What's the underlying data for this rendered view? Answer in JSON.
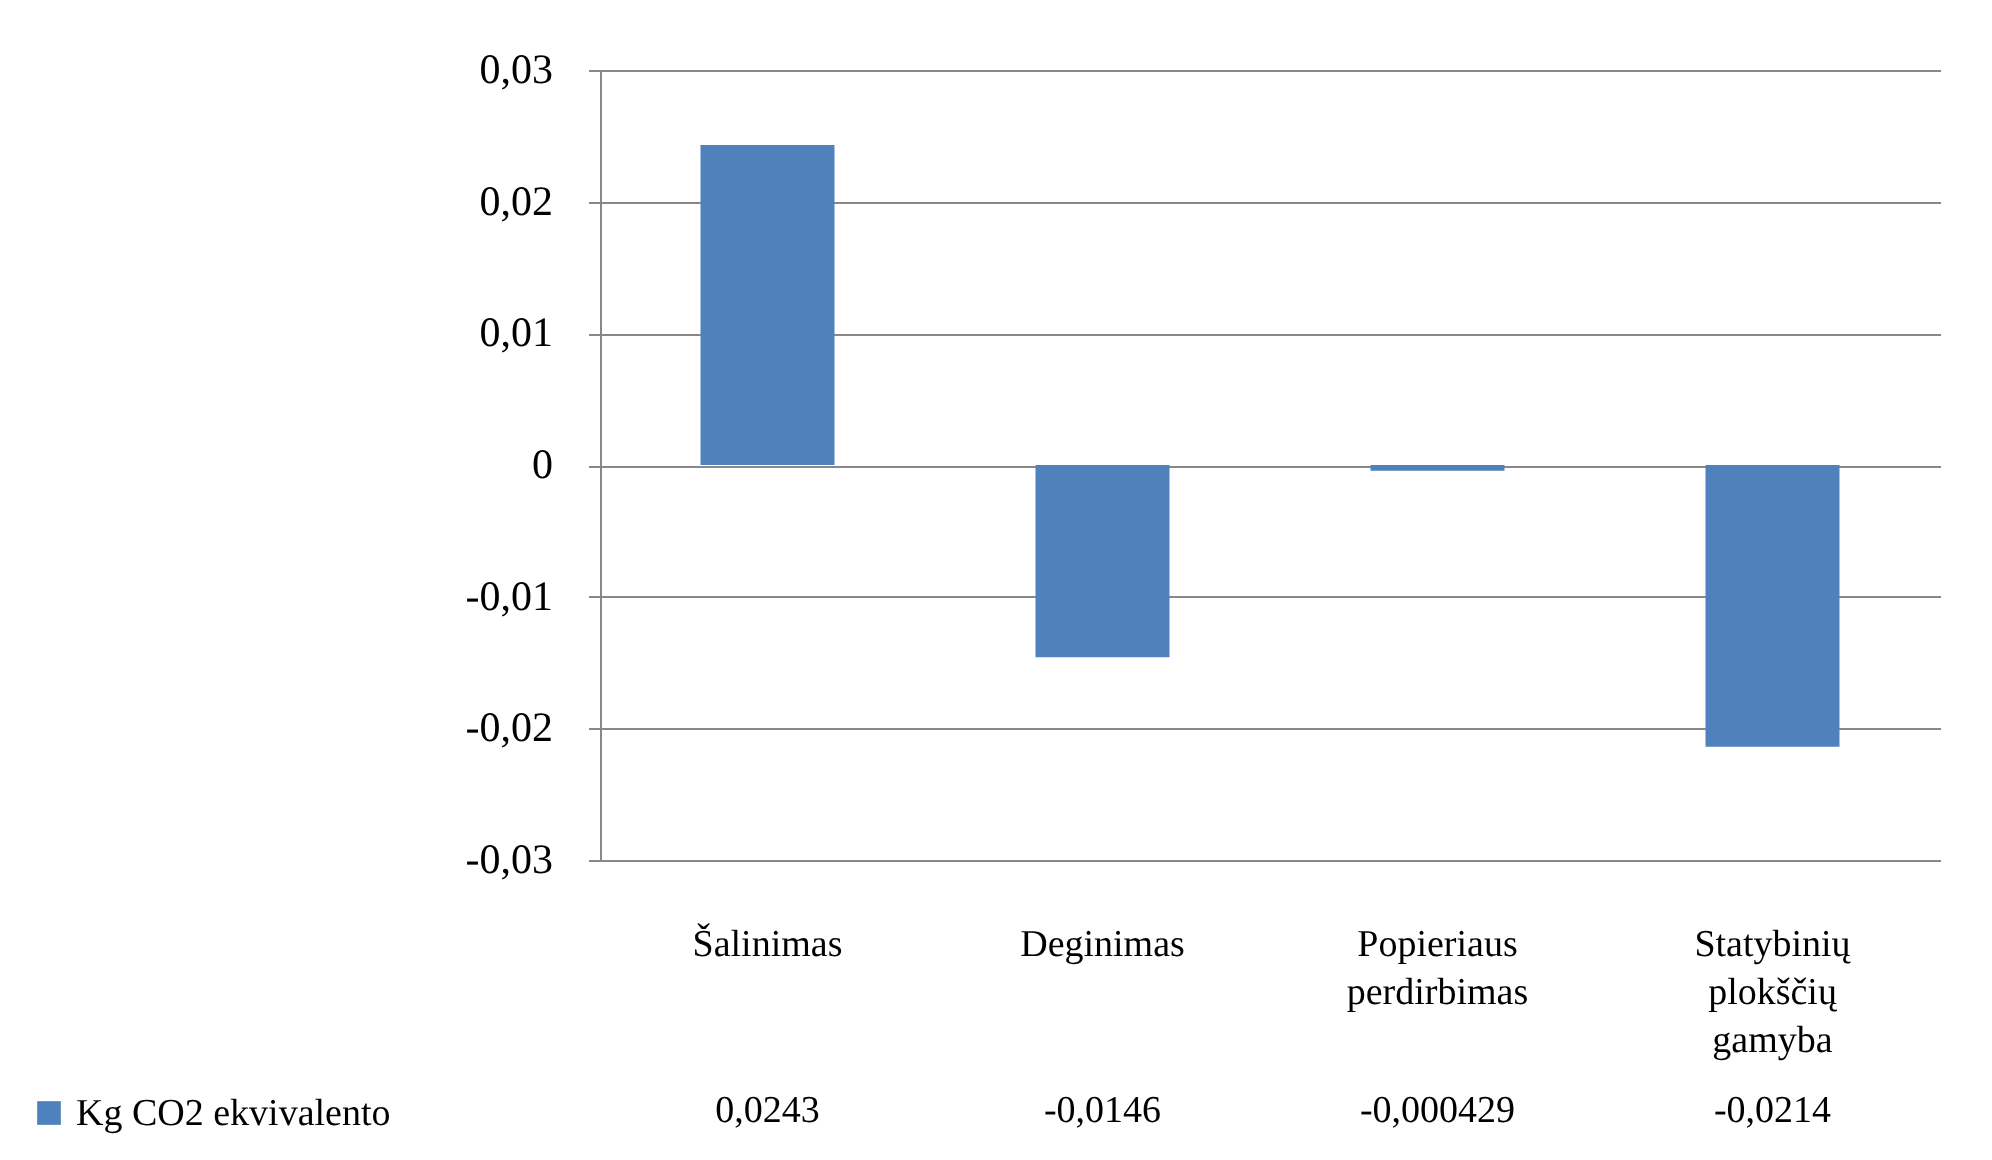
{
  "chart_data": {
    "type": "bar",
    "categories": [
      "Šalinimas",
      "Deginimas",
      "Popieriaus perdirbimas",
      "Statybinių plokščių gamyba"
    ],
    "series": [
      {
        "name": "Kg CO2 ekvivalento",
        "color": "#4f81bd",
        "values": [
          0.0243,
          -0.0146,
          -0.000429,
          -0.0214
        ]
      }
    ],
    "value_labels": [
      "0,0243",
      "-0,0146",
      "-0,000429",
      "-0,0214"
    ],
    "ylim": [
      -0.03,
      0.03
    ],
    "yticks": [
      {
        "value": -0.03,
        "label": "-0,03"
      },
      {
        "value": -0.02,
        "label": "-0,02"
      },
      {
        "value": -0.01,
        "label": "-0,01"
      },
      0,
      {
        "value": 0.01,
        "label": "0,01"
      },
      {
        "value": 0.02,
        "label": "0,02"
      },
      {
        "value": 0.03,
        "label": "0,03"
      }
    ],
    "grid": "y",
    "legend": "bottom left"
  }
}
